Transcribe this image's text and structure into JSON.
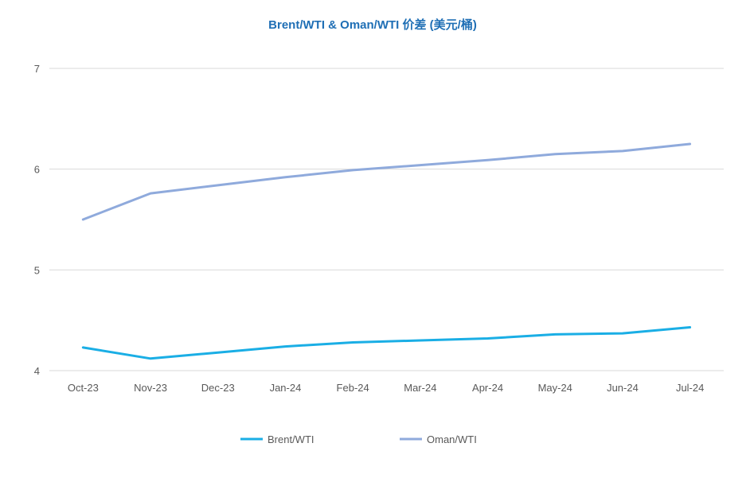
{
  "chart_data": {
    "type": "line",
    "title": "Brent/WTI & Oman/WTI 价差 (美元/桶)",
    "categories": [
      "Oct-23",
      "Nov-23",
      "Dec-23",
      "Jan-24",
      "Feb-24",
      "Mar-24",
      "Apr-24",
      "May-24",
      "Jun-24",
      "Jul-24"
    ],
    "ylim": [
      4,
      7
    ],
    "yticks": [
      "4",
      "5",
      "6",
      "7"
    ],
    "grid": true,
    "legend_position": "bottom",
    "colors": {
      "title": "#1f6fb5",
      "axis_text": "#595959",
      "grid": "#d9d9d9"
    },
    "series": [
      {
        "name": "Brent/WTI",
        "color": "#1aaee5",
        "values": [
          4.23,
          4.12,
          4.18,
          4.24,
          4.28,
          4.3,
          4.32,
          4.36,
          4.37,
          4.43
        ]
      },
      {
        "name": "Oman/WTI",
        "color": "#8faadc",
        "values": [
          5.5,
          5.76,
          5.84,
          5.92,
          5.99,
          6.04,
          6.09,
          6.15,
          6.18,
          6.25
        ]
      }
    ]
  }
}
